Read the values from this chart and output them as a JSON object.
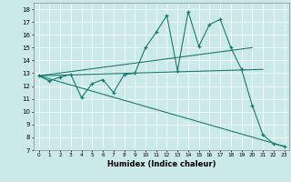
{
  "xlabel": "Humidex (Indice chaleur)",
  "ylabel": "",
  "bg_color": "#cce9e9",
  "line_color": "#1a7a6e",
  "xlim": [
    -0.5,
    23.5
  ],
  "ylim": [
    7,
    18.5
  ],
  "xticks": [
    0,
    1,
    2,
    3,
    4,
    5,
    6,
    7,
    8,
    9,
    10,
    11,
    12,
    13,
    14,
    15,
    16,
    17,
    18,
    19,
    20,
    21,
    22,
    23
  ],
  "yticks": [
    7,
    8,
    9,
    10,
    11,
    12,
    13,
    14,
    15,
    16,
    17,
    18
  ],
  "series1_x": [
    0,
    1,
    2,
    3,
    4,
    5,
    6,
    7,
    8,
    9,
    10,
    11,
    12,
    13,
    14,
    15,
    16,
    17,
    18,
    19,
    20,
    21,
    22,
    23
  ],
  "series1_y": [
    12.8,
    12.4,
    12.7,
    12.9,
    11.1,
    12.2,
    12.5,
    11.5,
    12.9,
    13.0,
    15.0,
    16.2,
    17.5,
    13.2,
    17.8,
    15.1,
    16.8,
    17.2,
    15.0,
    13.3,
    10.5,
    8.2,
    7.5,
    7.3
  ],
  "series2_x": [
    0,
    21
  ],
  "series2_y": [
    12.8,
    13.3
  ],
  "series3_x": [
    0,
    23
  ],
  "series3_y": [
    12.8,
    7.3
  ],
  "series4_x": [
    0,
    20
  ],
  "series4_y": [
    12.8,
    15.0
  ]
}
